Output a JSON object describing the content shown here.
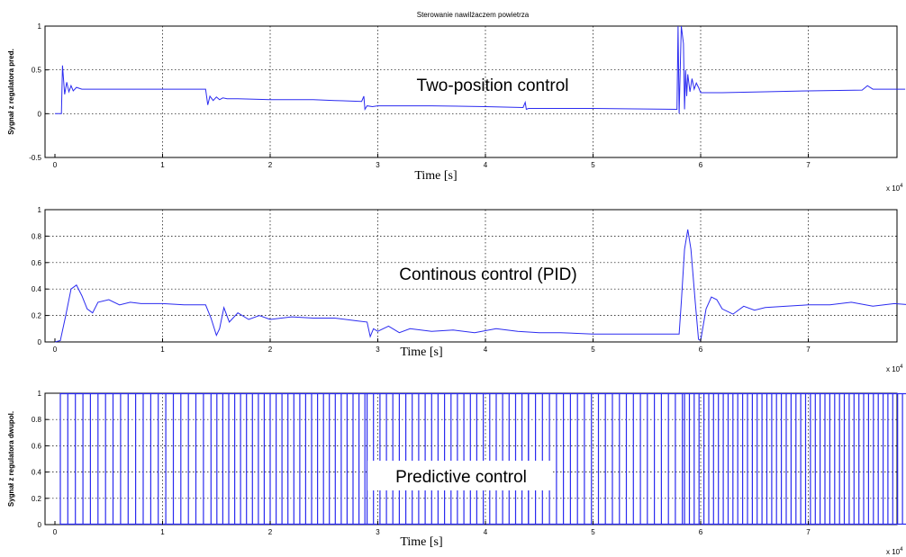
{
  "figure_title": "Sterowanie nawilżaczem powietrza",
  "x_multiplier_base": "x 10",
  "x_multiplier_exp": "4",
  "colors": {
    "series": "#2b2bf0",
    "axes": "#000000",
    "background": "#ffffff"
  },
  "chart_data": [
    {
      "type": "line",
      "title": "Sterowanie nawilżaczem powietrza",
      "annotation": "Two-position control",
      "xlabel": "Time [s]",
      "ylabel": "Sygnał z regulatora pred.",
      "xlim": [
        0,
        8
      ],
      "ylim": [
        -0.5,
        1
      ],
      "xticks": [
        "0",
        "1",
        "2",
        "3",
        "4",
        "5",
        "6",
        "7"
      ],
      "yticks": [
        "-0.5",
        "0",
        "0.5",
        "1"
      ],
      "grid": true,
      "x": [
        0,
        0.03,
        0.06,
        0.07,
        0.09,
        0.11,
        0.13,
        0.15,
        0.17,
        0.2,
        0.25,
        1.4,
        1.42,
        1.44,
        1.47,
        1.5,
        1.53,
        1.56,
        1.6,
        1.7,
        2.0,
        2.4,
        2.6,
        2.85,
        2.87,
        2.88,
        2.9,
        2.95,
        3.0,
        3.5,
        4.0,
        4.35,
        4.37,
        4.38,
        4.4,
        5.0,
        5.78,
        5.79,
        5.8,
        5.82,
        5.84,
        5.85,
        5.86,
        5.87,
        5.88,
        5.9,
        5.92,
        5.94,
        5.96,
        5.98,
        6.0,
        6.2,
        6.6,
        7.0,
        7.5,
        7.55,
        7.6,
        7.9
      ],
      "y": [
        0,
        0,
        0,
        0.55,
        0.22,
        0.36,
        0.25,
        0.32,
        0.26,
        0.3,
        0.28,
        0.28,
        0.1,
        0.2,
        0.15,
        0.19,
        0.16,
        0.18,
        0.17,
        0.17,
        0.16,
        0.16,
        0.15,
        0.14,
        0.2,
        0.05,
        0.09,
        0.08,
        0.09,
        0.09,
        0.08,
        0.07,
        0.13,
        0.05,
        0.06,
        0.06,
        0.05,
        1,
        0,
        1,
        0.8,
        0.05,
        0.5,
        0.2,
        0.45,
        0.25,
        0.4,
        0.28,
        0.35,
        0.3,
        0.24,
        0.24,
        0.25,
        0.26,
        0.27,
        0.32,
        0.28,
        0.28
      ]
    },
    {
      "type": "line",
      "annotation": "Continous control (PID)",
      "xlabel": "Time [s]",
      "ylabel": "",
      "xlim": [
        0,
        8
      ],
      "ylim": [
        0,
        1
      ],
      "xticks": [
        "0",
        "1",
        "2",
        "3",
        "4",
        "5",
        "6",
        "7"
      ],
      "yticks": [
        "0",
        "0.2",
        "0.4",
        "0.6",
        "0.8",
        "1"
      ],
      "grid": true,
      "x": [
        0,
        0.05,
        0.1,
        0.15,
        0.2,
        0.25,
        0.3,
        0.35,
        0.4,
        0.5,
        0.6,
        0.7,
        0.8,
        1.0,
        1.2,
        1.4,
        1.45,
        1.5,
        1.53,
        1.57,
        1.62,
        1.7,
        1.8,
        1.9,
        2.0,
        2.2,
        2.4,
        2.6,
        2.8,
        2.9,
        2.93,
        2.96,
        3.0,
        3.1,
        3.2,
        3.3,
        3.5,
        3.7,
        3.9,
        4.1,
        4.3,
        4.5,
        4.7,
        5.0,
        5.4,
        5.8,
        5.82,
        5.85,
        5.88,
        5.91,
        5.95,
        5.98,
        6.0,
        6.05,
        6.1,
        6.15,
        6.2,
        6.3,
        6.4,
        6.5,
        6.6,
        6.8,
        7.0,
        7.2,
        7.4,
        7.6,
        7.8,
        7.95
      ],
      "y": [
        0,
        0.01,
        0.2,
        0.4,
        0.43,
        0.35,
        0.25,
        0.22,
        0.3,
        0.32,
        0.28,
        0.3,
        0.29,
        0.29,
        0.28,
        0.28,
        0.18,
        0.05,
        0.1,
        0.26,
        0.15,
        0.22,
        0.17,
        0.2,
        0.17,
        0.19,
        0.18,
        0.18,
        0.16,
        0.15,
        0.04,
        0.1,
        0.08,
        0.12,
        0.07,
        0.1,
        0.08,
        0.09,
        0.07,
        0.1,
        0.08,
        0.07,
        0.07,
        0.06,
        0.06,
        0.06,
        0.3,
        0.7,
        0.85,
        0.7,
        0.3,
        0.02,
        0.01,
        0.25,
        0.34,
        0.32,
        0.25,
        0.21,
        0.27,
        0.24,
        0.26,
        0.27,
        0.28,
        0.28,
        0.3,
        0.27,
        0.29,
        0.28
      ]
    },
    {
      "type": "line",
      "annotation": "Predictive control",
      "xlabel": "Time [s]",
      "ylabel": "Sygnał z regulatora dwupol.",
      "xlim": [
        0,
        8
      ],
      "ylim": [
        0,
        1
      ],
      "xticks": [
        "0",
        "1",
        "2",
        "3",
        "4",
        "5",
        "6",
        "7"
      ],
      "yticks": [
        "0",
        "0.2",
        "0.4",
        "0.6",
        "0.8",
        "1"
      ],
      "grid": true,
      "pulse_segments": [
        {
          "x_start": 0.05,
          "x_end": 1.45,
          "period": 0.07
        },
        {
          "x_start": 1.45,
          "x_end": 2.9,
          "period": 0.055
        },
        {
          "x_start": 2.9,
          "x_end": 4.4,
          "period": 0.06
        },
        {
          "x_start": 4.4,
          "x_end": 5.85,
          "period": 0.065
        },
        {
          "x_start": 5.85,
          "x_end": 7.95,
          "period": 0.045
        }
      ]
    }
  ]
}
